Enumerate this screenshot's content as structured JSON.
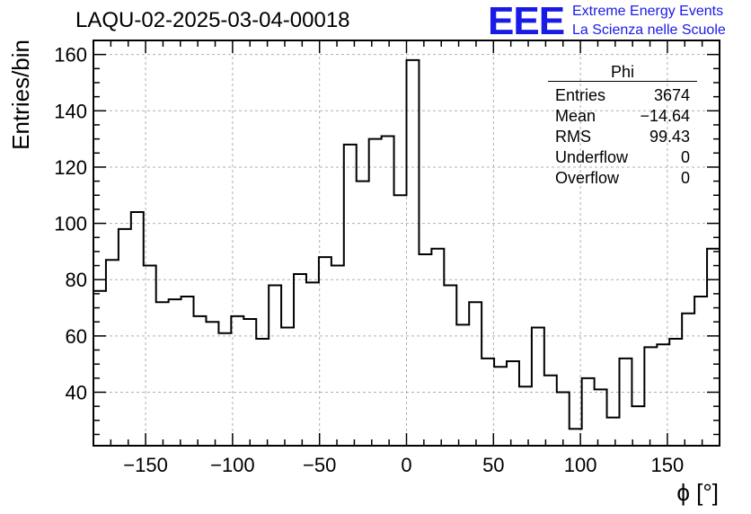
{
  "header": {
    "title": "LAQU-02-2025-03-04-00018",
    "logo_text": "EEE",
    "logo_line1": "Extreme Energy Events",
    "logo_line2": "La Scienza nelle Scuole"
  },
  "stats_box": {
    "title": "Phi",
    "rows": [
      {
        "label": "Entries",
        "value": "3674"
      },
      {
        "label": "Mean",
        "value": "−14.64"
      },
      {
        "label": "RMS",
        "value": "99.43"
      },
      {
        "label": "Underflow",
        "value": "0"
      },
      {
        "label": "Overflow",
        "value": "0"
      }
    ]
  },
  "chart_data": {
    "type": "bar",
    "style": "step-histogram",
    "title": "LAQU-02-2025-03-04-00018",
    "xlabel": "ϕ [°]",
    "ylabel": "Entries/bin",
    "xlim": [
      -180,
      180
    ],
    "ylim": [
      21,
      165
    ],
    "grid": true,
    "bin_width": 7.2,
    "x_ticks": [
      -150,
      -100,
      -50,
      0,
      50,
      100,
      150
    ],
    "x_tick_labels": [
      "−150",
      "−100",
      "−50",
      "0",
      "50",
      "100",
      "150"
    ],
    "y_ticks": [
      40,
      60,
      80,
      100,
      120,
      140,
      160
    ],
    "y_tick_labels": [
      "40",
      "60",
      "80",
      "100",
      "120",
      "140",
      "160"
    ],
    "bin_edges_start": -180,
    "values": [
      76,
      87,
      98,
      104,
      85,
      72,
      73,
      74,
      67,
      65,
      61,
      67,
      66,
      59,
      78,
      63,
      82,
      79,
      88,
      85,
      128,
      115,
      130,
      131,
      110,
      158,
      89,
      91,
      78,
      64,
      72,
      52,
      49,
      51,
      42,
      63,
      46,
      40,
      27,
      45,
      41,
      31,
      52,
      35,
      56,
      57,
      59,
      68,
      74,
      91
    ],
    "line_color": "#000000",
    "grid_color": "#b0b0b0"
  }
}
